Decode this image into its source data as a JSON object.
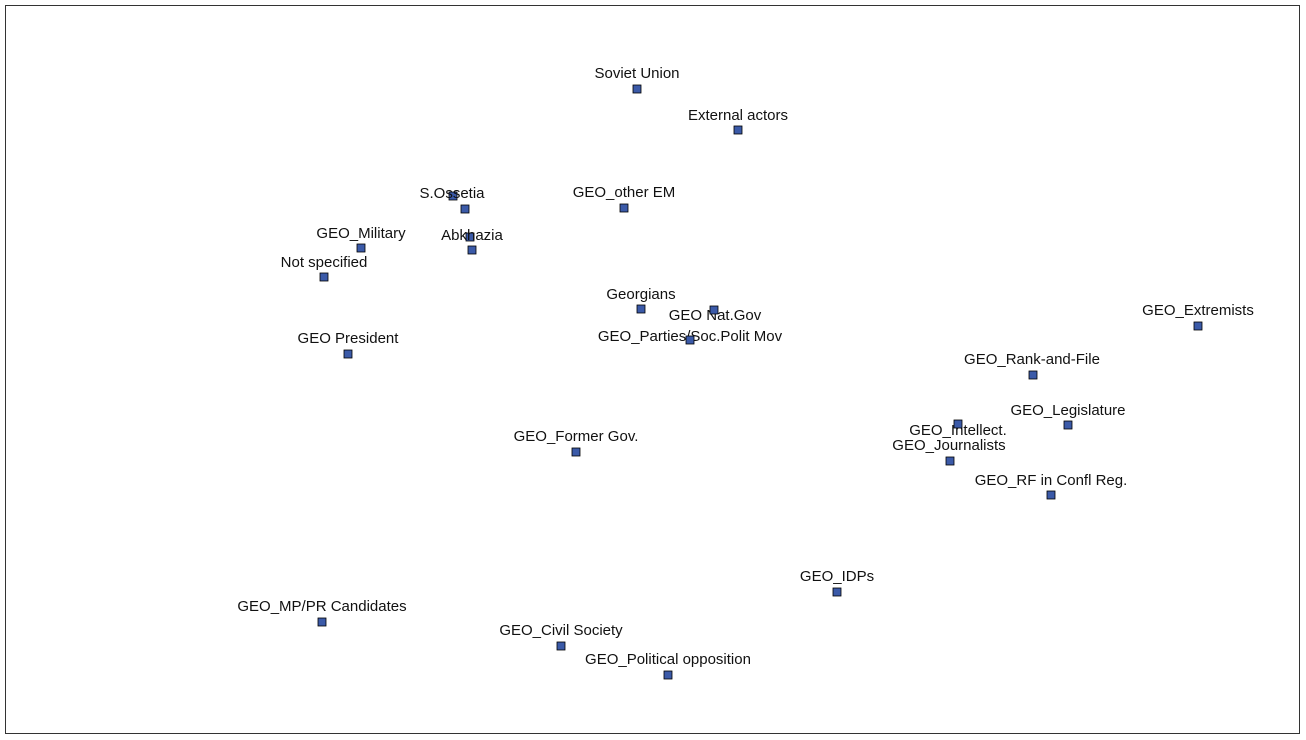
{
  "nodes": [
    {
      "label": "Soviet Union"
    },
    {
      "label": "External actors"
    },
    {
      "label": "S.Ossetia"
    },
    {
      "label": "GEO_other EM"
    },
    {
      "label": "GEO_Military"
    },
    {
      "label": "Abkhazia"
    },
    {
      "label": "Not specified"
    },
    {
      "label": "Georgians"
    },
    {
      "label": "GEO Nat.Gov"
    },
    {
      "label": "GEO_Parties/Soc.Polit Mov"
    },
    {
      "label": "GEO President"
    },
    {
      "label": "GEO_Extremists"
    },
    {
      "label": "GEO_Rank-and-File"
    },
    {
      "label": "GEO_Legislature"
    },
    {
      "label": "GEO_Intellect."
    },
    {
      "label": "GEO_Journalists"
    },
    {
      "label": "GEO_RF in Confl Reg."
    },
    {
      "label": "GEO_Former Gov."
    },
    {
      "label": "GEO_IDPs"
    },
    {
      "label": "GEO_MP/PR Candidates"
    },
    {
      "label": "GEO_Civil Society"
    },
    {
      "label": "GEO_Political opposition"
    }
  ]
}
